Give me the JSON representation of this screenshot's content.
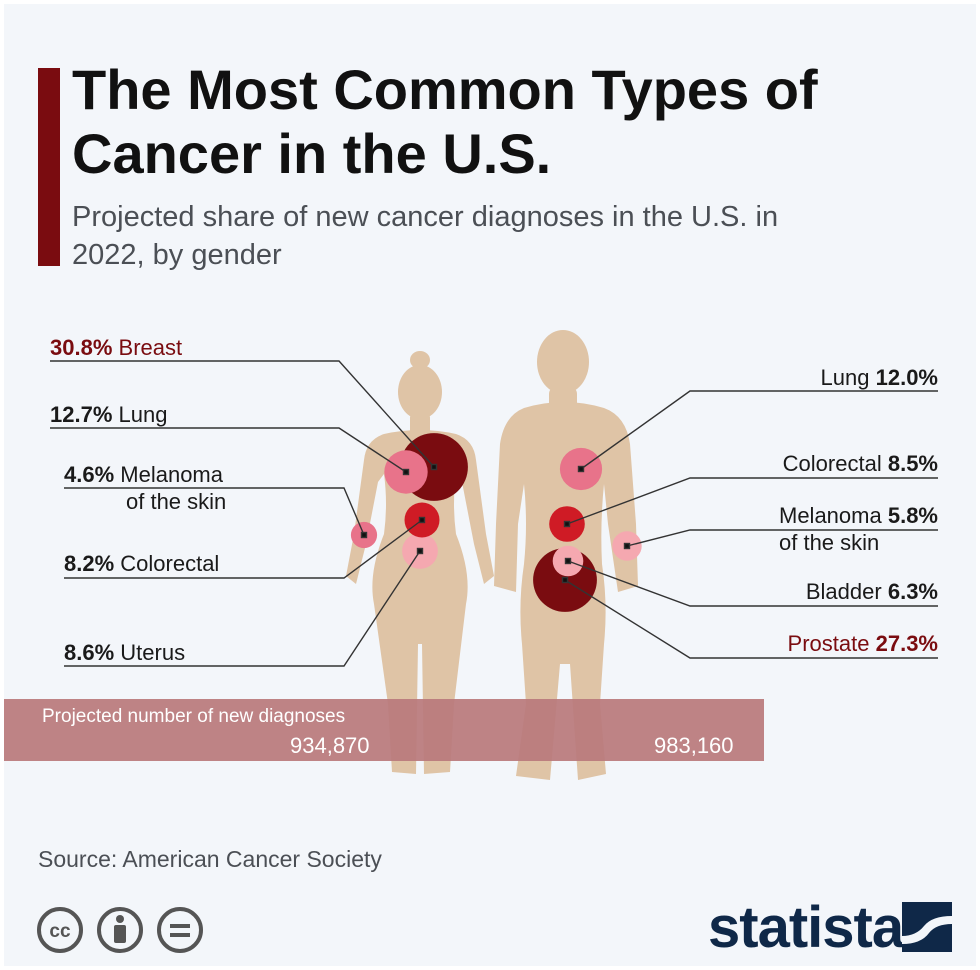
{
  "title": "The Most Common Types of Cancer in the U.S.",
  "subtitle": "Projected share of new cancer diagnoses in the U.S. in 2022, by gender",
  "diagnoses": {
    "caption": "Projected number of new diagnoses",
    "women": "934,870",
    "men": "983,160"
  },
  "source": "Source: American Cancer Society",
  "brand": "statista",
  "license_icons": [
    "cc-icon",
    "attribution-icon",
    "no-derivatives-icon"
  ],
  "colors": {
    "accent": "#7a0c10",
    "body": "#dfc4a6",
    "dark_red": "#7a0c10",
    "red": "#cf1b25",
    "pink": "#e8738a",
    "light_pink": "#f5a8b0",
    "band": "#b97a7c",
    "brand": "#0f2848"
  },
  "chart_data": {
    "type": "bubble",
    "title": "The Most Common Types of Cancer in the U.S.",
    "subtitle": "Projected share of new cancer diagnoses in the U.S. in 2022, by gender",
    "unit": "% of new cancer diagnoses",
    "series": [
      {
        "name": "Women",
        "total_new_diagnoses": "934,870",
        "points": [
          {
            "value": "30.8%",
            "share": 30.8,
            "name": "Breast",
            "name2": "",
            "highlight": true,
            "color": "dark_red"
          },
          {
            "value": "12.7%",
            "share": 12.7,
            "name": "Lung",
            "name2": "",
            "highlight": false,
            "color": "pink"
          },
          {
            "value": "4.6%",
            "share": 4.6,
            "name": "Melanoma",
            "name2": "of the skin",
            "highlight": false,
            "color": "pink"
          },
          {
            "value": "8.2%",
            "share": 8.2,
            "name": "Colorectal",
            "name2": "",
            "highlight": false,
            "color": "red"
          },
          {
            "value": "8.6%",
            "share": 8.6,
            "name": "Uterus",
            "name2": "",
            "highlight": false,
            "color": "light_pink"
          }
        ]
      },
      {
        "name": "Men",
        "total_new_diagnoses": "983,160",
        "points": [
          {
            "value": "12.0%",
            "share": 12.0,
            "name": "Lung",
            "name2": "",
            "highlight": false,
            "color": "pink"
          },
          {
            "value": "8.5%",
            "share": 8.5,
            "name": "Colorectal",
            "name2": "",
            "highlight": false,
            "color": "red"
          },
          {
            "value": "5.8%",
            "share": 5.8,
            "name": "Melanoma",
            "name2": "of the skin",
            "highlight": false,
            "color": "light_pink"
          },
          {
            "value": "6.3%",
            "share": 6.3,
            "name": "Bladder",
            "name2": "",
            "highlight": false,
            "color": "light_pink"
          },
          {
            "value": "27.3%",
            "share": 27.3,
            "name": "Prostate",
            "name2": "",
            "highlight": true,
            "color": "dark_red"
          }
        ]
      }
    ]
  }
}
